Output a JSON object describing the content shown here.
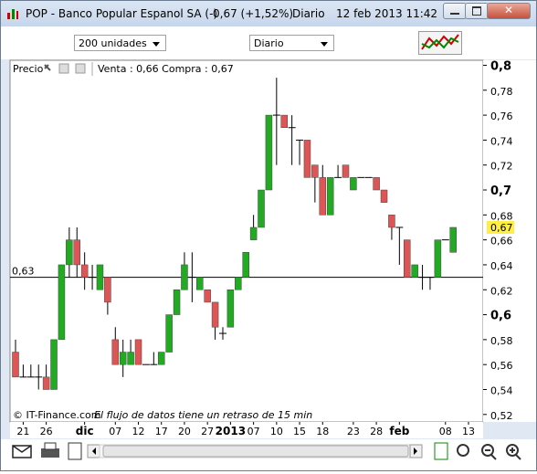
{
  "window": {
    "title": "POP - Banco Popular Espanol SA (-)",
    "quote": "0,67 (+1,52%)",
    "period": "Diario",
    "datetime": "12 feb 2013 11:42"
  },
  "toolbar": {
    "units": "200 unidades",
    "period": "Diario"
  },
  "chart_data": {
    "type": "candlestick",
    "legend": "Precio",
    "quote_info": "Venta : 0,66 Compra : 0,67",
    "credit": "© IT-Finance.com",
    "notice": "El flujo de datos tiene un retraso de 15 min",
    "up_color": "#22aa22",
    "down_color": "#dd5555",
    "categories": [
      null,
      "21",
      null,
      null,
      "26",
      null,
      null,
      null,
      null,
      "dic",
      null,
      null,
      null,
      "07",
      null,
      null,
      "12",
      null,
      null,
      "17",
      null,
      null,
      "20",
      null,
      null,
      "27",
      null,
      null,
      "2013",
      null,
      null,
      "07",
      null,
      null,
      "10",
      null,
      null,
      "15",
      null,
      null,
      "18",
      null,
      null,
      null,
      "23",
      null,
      null,
      "28",
      null,
      null,
      "feb",
      null,
      null,
      null,
      null,
      null,
      "08",
      null,
      null,
      "13"
    ],
    "open": [
      0.57,
      0.55,
      0.55,
      0.55,
      0.55,
      0.54,
      0.58,
      0.64,
      0.66,
      0.64,
      0.63,
      0.62,
      0.63,
      0.58,
      0.56,
      0.56,
      0.58,
      0.56,
      0.56,
      0.56,
      0.57,
      0.6,
      0.62,
      0.63,
      0.62,
      0.62,
      0.61,
      0.585,
      0.59,
      0.62,
      0.63,
      0.66,
      0.67,
      0.7,
      0.76,
      0.76,
      0.75,
      0.74,
      0.74,
      0.72,
      0.71,
      0.68,
      0.71,
      0.72,
      0.7,
      0.71,
      0.71,
      0.71,
      0.7,
      0.68,
      0.67,
      0.66,
      0.63,
      0.63,
      0.63,
      0.63,
      0.66,
      0.65,
      null,
      null
    ],
    "high": [
      0.58,
      0.56,
      0.56,
      0.56,
      0.56,
      0.58,
      0.64,
      0.67,
      0.67,
      0.65,
      0.64,
      0.64,
      0.63,
      0.59,
      0.58,
      0.58,
      0.58,
      0.56,
      0.57,
      0.57,
      0.6,
      0.62,
      0.65,
      0.65,
      0.63,
      0.62,
      0.61,
      0.59,
      0.62,
      0.63,
      0.65,
      0.68,
      0.7,
      0.76,
      0.79,
      0.76,
      0.76,
      0.74,
      0.74,
      0.72,
      0.72,
      0.71,
      0.72,
      0.72,
      0.71,
      0.71,
      0.71,
      0.71,
      0.7,
      0.68,
      0.67,
      0.66,
      0.64,
      0.64,
      0.63,
      0.66,
      0.66,
      0.67,
      null,
      null
    ],
    "low": [
      0.55,
      0.55,
      0.55,
      0.54,
      0.54,
      0.54,
      0.58,
      0.63,
      0.63,
      0.62,
      0.62,
      0.62,
      0.6,
      0.56,
      0.55,
      0.56,
      0.56,
      0.56,
      0.56,
      0.56,
      0.57,
      0.6,
      0.62,
      0.61,
      0.62,
      0.61,
      0.58,
      0.58,
      0.59,
      0.62,
      0.63,
      0.66,
      0.67,
      0.7,
      0.72,
      0.75,
      0.72,
      0.72,
      0.71,
      0.69,
      0.68,
      0.68,
      0.71,
      0.71,
      0.7,
      0.71,
      0.71,
      0.7,
      0.69,
      0.66,
      0.64,
      0.63,
      0.63,
      0.62,
      0.62,
      0.63,
      0.66,
      0.65,
      null,
      null
    ],
    "close": [
      0.55,
      0.55,
      0.55,
      0.55,
      0.54,
      0.58,
      0.64,
      0.66,
      0.64,
      0.63,
      0.63,
      0.64,
      0.61,
      0.56,
      0.57,
      0.57,
      0.56,
      0.56,
      0.56,
      0.57,
      0.6,
      0.62,
      0.64,
      0.63,
      0.63,
      0.61,
      0.59,
      0.585,
      0.62,
      0.63,
      0.65,
      0.67,
      0.7,
      0.76,
      0.76,
      0.75,
      0.75,
      0.74,
      0.71,
      0.71,
      0.68,
      0.71,
      0.71,
      0.71,
      0.71,
      0.71,
      0.71,
      0.7,
      0.69,
      0.67,
      0.67,
      0.63,
      0.64,
      0.63,
      0.63,
      0.66,
      0.66,
      0.67,
      null,
      null
    ],
    "ylim": [
      0.514,
      0.804
    ],
    "yticks": [
      {
        "value": 0.8,
        "label": "0,8"
      },
      {
        "value": 0.78,
        "label": "0,78"
      },
      {
        "value": 0.76,
        "label": "0,76"
      },
      {
        "value": 0.74,
        "label": "0,74"
      },
      {
        "value": 0.72,
        "label": "0,72"
      },
      {
        "value": 0.7,
        "label": "0,7"
      },
      {
        "value": 0.68,
        "label": "0,68"
      },
      {
        "value": 0.66,
        "label": "0,66"
      },
      {
        "value": 0.64,
        "label": "0,64"
      },
      {
        "value": 0.62,
        "label": "0,62"
      },
      {
        "value": 0.6,
        "label": "0,6"
      },
      {
        "value": 0.58,
        "label": "0,58"
      },
      {
        "value": 0.56,
        "label": "0,56"
      },
      {
        "value": 0.54,
        "label": "0,54"
      },
      {
        "value": 0.52,
        "label": "0,52"
      }
    ],
    "last_price": {
      "value": 0.67,
      "label": "0,67"
    },
    "reference_line": {
      "value": 0.63,
      "label": "0,63"
    }
  }
}
